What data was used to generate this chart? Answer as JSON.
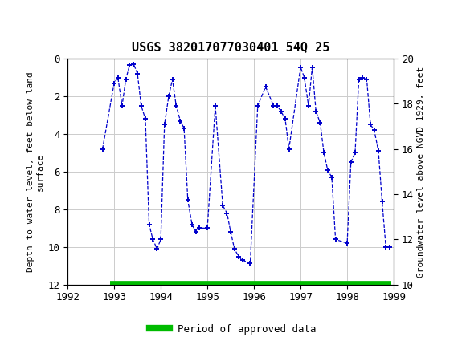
{
  "title": "USGS 382017077030401 54Q 25",
  "ylabel_left": "Depth to water level, feet below land\nsurface",
  "ylabel_right": "Groundwater level above NGVD 1929, feet",
  "header_color": "#1a6b3c",
  "xlim": [
    1992,
    1999
  ],
  "ylim_left_top": 0,
  "ylim_left_bottom": 12,
  "ylim_right_top": 20,
  "ylim_right_bottom": 10,
  "y_ticks_left": [
    0,
    2,
    4,
    6,
    8,
    10,
    12
  ],
  "y_ticks_right": [
    20,
    18,
    16,
    14,
    12,
    10
  ],
  "x_ticks": [
    1992,
    1993,
    1994,
    1995,
    1996,
    1997,
    1998,
    1999
  ],
  "line_color": "#0000cc",
  "marker_color": "#0000cc",
  "legend_label": "Period of approved data",
  "legend_color": "#00bb00",
  "dates": [
    1992.75,
    1993.0,
    1993.08,
    1993.17,
    1993.25,
    1993.33,
    1993.42,
    1993.5,
    1993.58,
    1993.67,
    1993.75,
    1993.83,
    1993.92,
    1994.0,
    1994.08,
    1994.17,
    1994.25,
    1994.33,
    1994.42,
    1994.5,
    1994.58,
    1994.67,
    1994.75,
    1994.83,
    1995.0,
    1995.17,
    1995.33,
    1995.42,
    1995.5,
    1995.58,
    1995.67,
    1995.75,
    1995.92,
    1996.08,
    1996.25,
    1996.42,
    1996.5,
    1996.58,
    1996.67,
    1996.75,
    1997.0,
    1997.08,
    1997.17,
    1997.25,
    1997.33,
    1997.42,
    1997.5,
    1997.58,
    1997.67,
    1997.75,
    1998.0,
    1998.08,
    1998.17,
    1998.25,
    1998.33,
    1998.42,
    1998.5,
    1998.58,
    1998.67,
    1998.75,
    1998.83,
    1998.92
  ],
  "depths": [
    4.8,
    1.3,
    1.0,
    2.5,
    1.1,
    0.35,
    0.3,
    0.8,
    2.5,
    3.2,
    8.8,
    9.6,
    10.1,
    9.6,
    3.5,
    2.0,
    1.1,
    2.5,
    3.3,
    3.7,
    7.5,
    8.8,
    9.2,
    9.0,
    9.0,
    2.5,
    7.8,
    8.2,
    9.2,
    10.1,
    10.5,
    10.7,
    10.85,
    2.5,
    1.5,
    2.5,
    2.5,
    2.8,
    3.2,
    4.8,
    0.45,
    1.0,
    2.5,
    0.45,
    2.8,
    3.4,
    5.0,
    5.9,
    6.3,
    9.6,
    9.8,
    5.5,
    5.0,
    1.1,
    1.0,
    1.1,
    3.5,
    3.8,
    4.9,
    7.6,
    10.0,
    10.0
  ],
  "approved_start": 1992.92,
  "approved_end": 1998.95,
  "approved_y": 12.0,
  "background_color": "#ffffff",
  "grid_color": "#cccccc",
  "tick_fontsize": 9,
  "label_fontsize": 8,
  "title_fontsize": 11
}
